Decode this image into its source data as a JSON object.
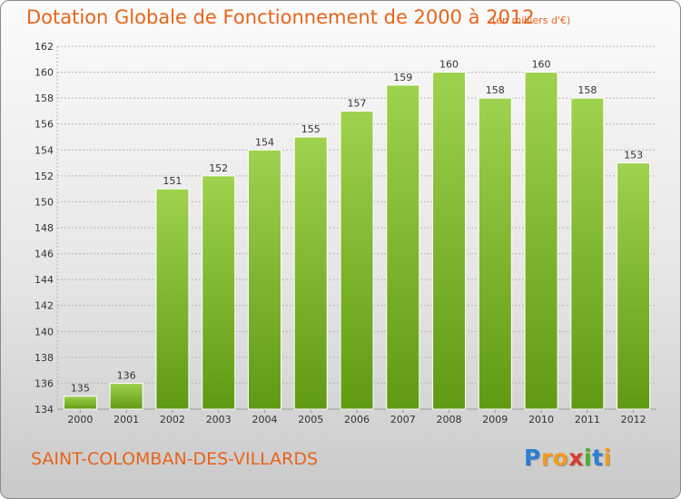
{
  "title": "Dotation Globale de Fonctionnement de 2000 à 2012",
  "subtitle": "(en milliers d'€)",
  "commune": "SAINT-COLOMBAN-DES-VILLARDS",
  "logo": {
    "text": "Proxiti",
    "letter_colors": [
      "#2a7fd4",
      "#f29a1f",
      "#f29a1f",
      "#d93a2b",
      "#4caf2a",
      "#2a7fd4",
      "#f29a1f"
    ]
  },
  "colors": {
    "title": "#e8641b",
    "bar_light": "#9fd24e",
    "bar_dark": "#5f9a12",
    "grid": "#b5b5b5",
    "axis_text": "#333333"
  },
  "chart_data": {
    "type": "bar",
    "title": "Dotation Globale de Fonctionnement de 2000 à 2012",
    "subtitle": "(en milliers d'€)",
    "categories": [
      "2000",
      "2001",
      "2002",
      "2003",
      "2004",
      "2005",
      "2006",
      "2007",
      "2008",
      "2009",
      "2010",
      "2011",
      "2012"
    ],
    "values": [
      135,
      136,
      151,
      152,
      154,
      155,
      157,
      159,
      160,
      158,
      160,
      158,
      153
    ],
    "ylim": [
      134,
      162
    ],
    "yticks": [
      134,
      136,
      138,
      140,
      142,
      144,
      146,
      148,
      150,
      152,
      154,
      156,
      158,
      160,
      162
    ],
    "grid": true,
    "grid_style": "dashed-horizontal",
    "data_labels": true
  }
}
